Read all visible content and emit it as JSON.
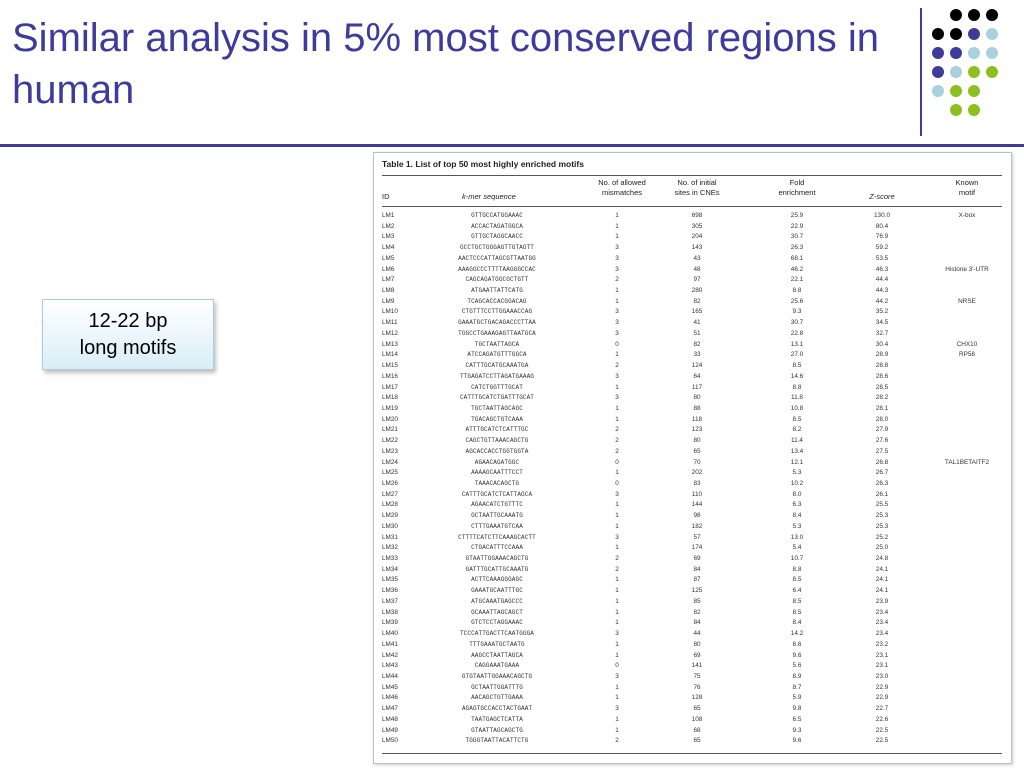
{
  "slide": {
    "title": "Similar analysis in 5% most conserved regions in human",
    "callout_line1": "12-22 bp",
    "callout_line2": "long motifs",
    "accent_color": "#3f3b9a"
  },
  "decor": {
    "dot_colors": [
      "#000000",
      "#3f3b9a",
      "#a9d1dd",
      "#8fbf1f"
    ]
  },
  "table": {
    "caption": "Table 1. List of top 50 most highly enriched motifs",
    "headers": {
      "id": "ID",
      "seq": "k-mer sequence",
      "mis1": "No. of allowed",
      "mis2": "mismatches",
      "sites1": "No. of initial",
      "sites2": "sites in CNEs",
      "fold1": "Fold",
      "fold2": "enrichment",
      "z": "Z-score",
      "motif1": "Known",
      "motif2": "motif"
    },
    "rows": [
      [
        "LM1",
        "GTTGCCATGGAAAC",
        "1",
        "698",
        "25.9",
        "130.0",
        "X-box"
      ],
      [
        "LM2",
        "ACCACTAGATGGCA",
        "1",
        "305",
        "22.9",
        "80.4",
        ""
      ],
      [
        "LM3",
        "GTTGCTAGGCAACC",
        "1",
        "204",
        "30.7",
        "76.9",
        ""
      ],
      [
        "LM4",
        "GCCTGCTGGGAGTTGTAGTT",
        "3",
        "143",
        "26.3",
        "59.2",
        ""
      ],
      [
        "LM5",
        "AACTCCCATTAGCGTTAATGG",
        "3",
        "43",
        "68.1",
        "53.5",
        ""
      ],
      [
        "LM6",
        "AAAGGCCCTTTTAAGGGCCAC",
        "3",
        "48",
        "46.2",
        "46.3",
        "Histone 3′-UTR"
      ],
      [
        "LM7",
        "CAGCAGATGGCGCTGTT",
        "2",
        "97",
        "22.1",
        "44.4",
        ""
      ],
      [
        "LM8",
        "ATGAATTATTCATG",
        "1",
        "280",
        "8.8",
        "44.3",
        ""
      ],
      [
        "LM9",
        "TCAGCACCACGGACAG",
        "1",
        "82",
        "25.6",
        "44.2",
        "NRSE"
      ],
      [
        "LM10",
        "CTGTTTCCTTGGAAACCAG",
        "3",
        "165",
        "9.3",
        "35.2",
        ""
      ],
      [
        "LM11",
        "GAAATGCTGACAGACCCTTAA",
        "3",
        "41",
        "30.7",
        "34.5",
        ""
      ],
      [
        "LM12",
        "TGGCCTGAAAGAGTTAATGCA",
        "3",
        "51",
        "22.8",
        "32.7",
        ""
      ],
      [
        "LM13",
        "TGCTAATTAGCA",
        "0",
        "82",
        "13.1",
        "30.4",
        "CHX10"
      ],
      [
        "LM14",
        "ATCCAGATGTTTGGCA",
        "1",
        "33",
        "27.0",
        "28.9",
        "RP58"
      ],
      [
        "LM15",
        "CATTTGCATGCAAATGA",
        "2",
        "124",
        "8.5",
        "28.8",
        ""
      ],
      [
        "LM16",
        "TTGAGATCCTTAGATGAAAG",
        "3",
        "64",
        "14.6",
        "28.6",
        ""
      ],
      [
        "LM17",
        "CATCTGGTTTGCAT",
        "1",
        "117",
        "8.8",
        "28.5",
        ""
      ],
      [
        "LM18",
        "CATTTGCATCTGATTTGCAT",
        "3",
        "80",
        "11.8",
        "28.2",
        ""
      ],
      [
        "LM19",
        "TGCTAATTAGCAGC",
        "1",
        "88",
        "10.8",
        "28.1",
        ""
      ],
      [
        "LM20",
        "TGACAGCTGTCAAA",
        "1",
        "118",
        "8.5",
        "28.0",
        ""
      ],
      [
        "LM21",
        "ATTTGCATCTCATTTGC",
        "2",
        "123",
        "8.2",
        "27.9",
        ""
      ],
      [
        "LM22",
        "CAGCTGTTAAACAGCTG",
        "2",
        "80",
        "11.4",
        "27.6",
        ""
      ],
      [
        "LM23",
        "AGCACCACCTGGTGGTA",
        "2",
        "65",
        "13.4",
        "27.5",
        ""
      ],
      [
        "LM24",
        "AGAACAGATGGC",
        "0",
        "70",
        "12.1",
        "26.8",
        "TAL1BETAITF2"
      ],
      [
        "LM25",
        "AAAAGCAATTTCCT",
        "1",
        "202",
        "5.3",
        "26.7",
        ""
      ],
      [
        "LM26",
        "TAAACACAGCTG",
        "0",
        "83",
        "10.2",
        "26.3",
        ""
      ],
      [
        "LM27",
        "CATTTGCATCTCATTAGCA",
        "3",
        "110",
        "8.0",
        "26.1",
        ""
      ],
      [
        "LM28",
        "AGAACATCTGTTTC",
        "1",
        "144",
        "6.3",
        "25.5",
        ""
      ],
      [
        "LM29",
        "GCTAATTGCAAATG",
        "1",
        "98",
        "8.4",
        "25.3",
        ""
      ],
      [
        "LM30",
        "CTTTGAAATGTCAA",
        "1",
        "182",
        "5.3",
        "25.3",
        ""
      ],
      [
        "LM31",
        "CTTTTCATCTTCAAAGCACTT",
        "3",
        "57",
        "13.0",
        "25.2",
        ""
      ],
      [
        "LM32",
        "CTGACATTTCCAAA",
        "1",
        "174",
        "5.4",
        "25.0",
        ""
      ],
      [
        "LM33",
        "GTAATTGGAAACAGCTG",
        "2",
        "69",
        "10.7",
        "24.8",
        ""
      ],
      [
        "LM34",
        "GATTTGCATTGCAAATG",
        "2",
        "84",
        "8.8",
        "24.1",
        ""
      ],
      [
        "LM35",
        "ACTTCAAAGGGAGC",
        "1",
        "87",
        "8.5",
        "24.1",
        ""
      ],
      [
        "LM36",
        "GAAATGCAATTTGC",
        "1",
        "125",
        "6.4",
        "24.1",
        ""
      ],
      [
        "LM37",
        "ATGCAAATGAGCCC",
        "1",
        "85",
        "8.5",
        "23.9",
        ""
      ],
      [
        "LM38",
        "GCAAATTAGCAGCT",
        "1",
        "82",
        "8.5",
        "23.4",
        ""
      ],
      [
        "LM39",
        "GTCTCCTAGGAAAC",
        "1",
        "84",
        "8.4",
        "23.4",
        ""
      ],
      [
        "LM40",
        "TCCCATTGACTTCAATGGGA",
        "3",
        "44",
        "14.2",
        "23.4",
        ""
      ],
      [
        "LM41",
        "TTTGAAATGCTAATG",
        "1",
        "80",
        "8.6",
        "23.2",
        ""
      ],
      [
        "LM42",
        "AAGCCTAATTAGCA",
        "1",
        "69",
        "9.6",
        "23.1",
        ""
      ],
      [
        "LM43",
        "CAGGAAATGAAA",
        "0",
        "141",
        "5.6",
        "23.1",
        ""
      ],
      [
        "LM44",
        "GTGTAATTGGAAACAGCTG",
        "3",
        "75",
        "8.9",
        "23.0",
        ""
      ],
      [
        "LM45",
        "GCTAATTGGATTTG",
        "1",
        "76",
        "8.7",
        "22.9",
        ""
      ],
      [
        "LM46",
        "AACAGCTGTTGAAA",
        "1",
        "128",
        "5.9",
        "22.9",
        ""
      ],
      [
        "LM47",
        "AGAGTGCCACCTACTGAAT",
        "3",
        "65",
        "9.8",
        "22.7",
        ""
      ],
      [
        "LM48",
        "TAATGAGCTCATTA",
        "1",
        "108",
        "6.5",
        "22.6",
        ""
      ],
      [
        "LM49",
        "GTAATTAGCAGCTG",
        "1",
        "68",
        "9.3",
        "22.5",
        ""
      ],
      [
        "LM50",
        "TGGGTAATTACATTCTG",
        "2",
        "65",
        "9.6",
        "22.5",
        ""
      ]
    ]
  }
}
